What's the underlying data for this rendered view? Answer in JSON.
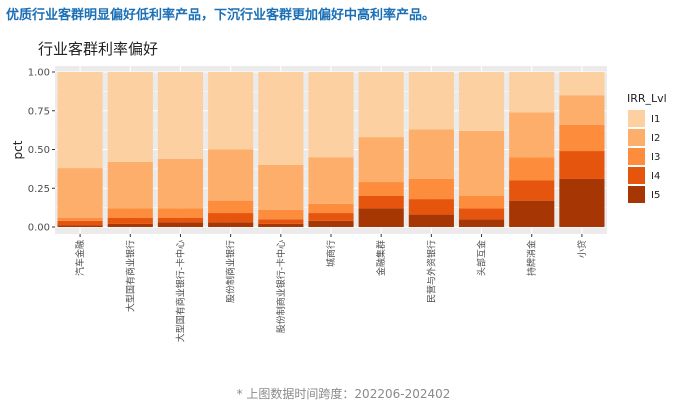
{
  "headline": "优质行业客群明显偏好低利率产品，下沉行业客群更加偏好中高利率产品。",
  "footnote": "* 上图数据时间跨度：202206-202402",
  "chart_data": {
    "type": "bar",
    "stacked": true,
    "title": "行业客群利率偏好",
    "xlabel": "",
    "ylabel": "pct",
    "ylim": [
      0,
      1
    ],
    "yticks": [
      "0.00",
      "0.25",
      "0.50",
      "0.75",
      "1.00"
    ],
    "grid": true,
    "legend": {
      "title": "IRR_Lvl",
      "position": "right"
    },
    "categories": [
      "汽车金融",
      "大型国有商业银行",
      "大型国有商业银行-卡中心",
      "股份制商业银行",
      "股份制商业银行-卡中心",
      "城商行",
      "金融集群",
      "民营与外资银行",
      "头部互金",
      "持牌消金",
      "小贷"
    ],
    "series": [
      {
        "name": "I1",
        "color": "#fdd0a2",
        "values": [
          0.62,
          0.58,
          0.56,
          0.5,
          0.6,
          0.55,
          0.42,
          0.37,
          0.38,
          0.26,
          0.15
        ]
      },
      {
        "name": "I2",
        "color": "#fdae6b",
        "values": [
          0.32,
          0.3,
          0.32,
          0.33,
          0.29,
          0.3,
          0.29,
          0.32,
          0.42,
          0.29,
          0.19
        ]
      },
      {
        "name": "I3",
        "color": "#fd8d3c",
        "values": [
          0.02,
          0.06,
          0.06,
          0.08,
          0.06,
          0.06,
          0.09,
          0.13,
          0.08,
          0.15,
          0.17
        ]
      },
      {
        "name": "I4",
        "color": "#e6550d",
        "values": [
          0.03,
          0.04,
          0.03,
          0.06,
          0.03,
          0.05,
          0.08,
          0.1,
          0.07,
          0.13,
          0.18
        ]
      },
      {
        "name": "I5",
        "color": "#a63603",
        "values": [
          0.01,
          0.02,
          0.03,
          0.03,
          0.02,
          0.04,
          0.12,
          0.08,
          0.05,
          0.17,
          0.31
        ]
      }
    ]
  }
}
